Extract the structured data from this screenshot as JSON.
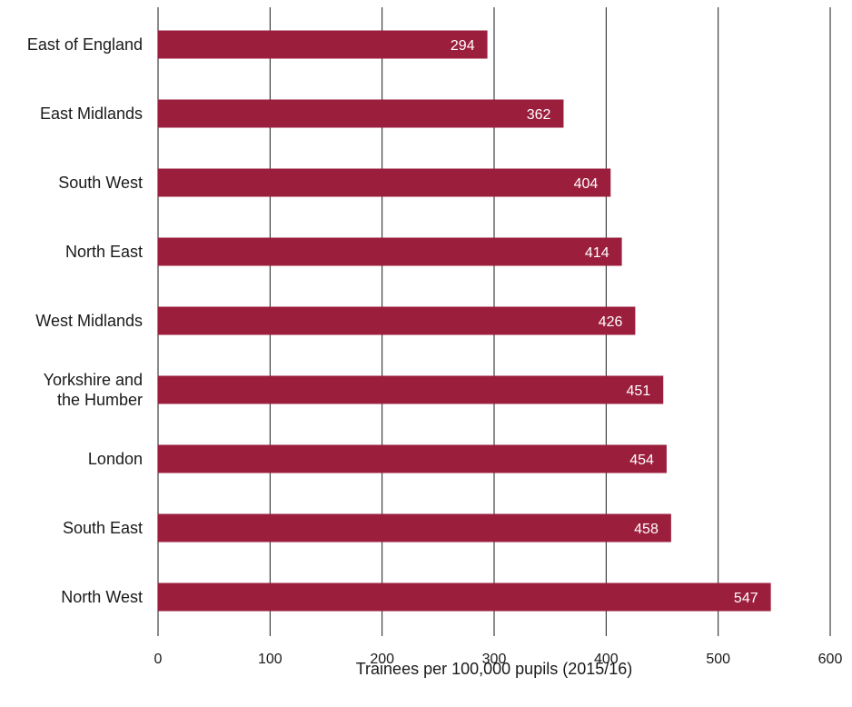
{
  "chart_data": {
    "type": "bar",
    "orientation": "horizontal",
    "categories": [
      "East of England",
      "East Midlands",
      "South West",
      "North East",
      "West Midlands",
      "Yorkshire and the Humber",
      "London",
      "South East",
      "North West"
    ],
    "category_label_lines": [
      [
        "East of England"
      ],
      [
        "East Midlands"
      ],
      [
        "South West"
      ],
      [
        "North East"
      ],
      [
        "West Midlands"
      ],
      [
        "Yorkshire and",
        "the Humber"
      ],
      [
        "London"
      ],
      [
        "South East"
      ],
      [
        "North West"
      ]
    ],
    "values": [
      294,
      362,
      404,
      414,
      426,
      451,
      454,
      458,
      547
    ],
    "data_labels": [
      "294",
      "362",
      "404",
      "414",
      "426",
      "451",
      "454",
      "458",
      "547"
    ],
    "xlabel": "Trainees per 100,000 pupils (2015/16)",
    "ylabel": "",
    "xlim": [
      0,
      600
    ],
    "xticks": [
      0,
      100,
      200,
      300,
      400,
      500,
      600
    ],
    "xtick_labels": [
      "0",
      "100",
      "200",
      "300",
      "400",
      "500",
      "600"
    ],
    "grid": true,
    "bar_color": "#9b1f3d",
    "data_label_color": "#ffffff"
  }
}
